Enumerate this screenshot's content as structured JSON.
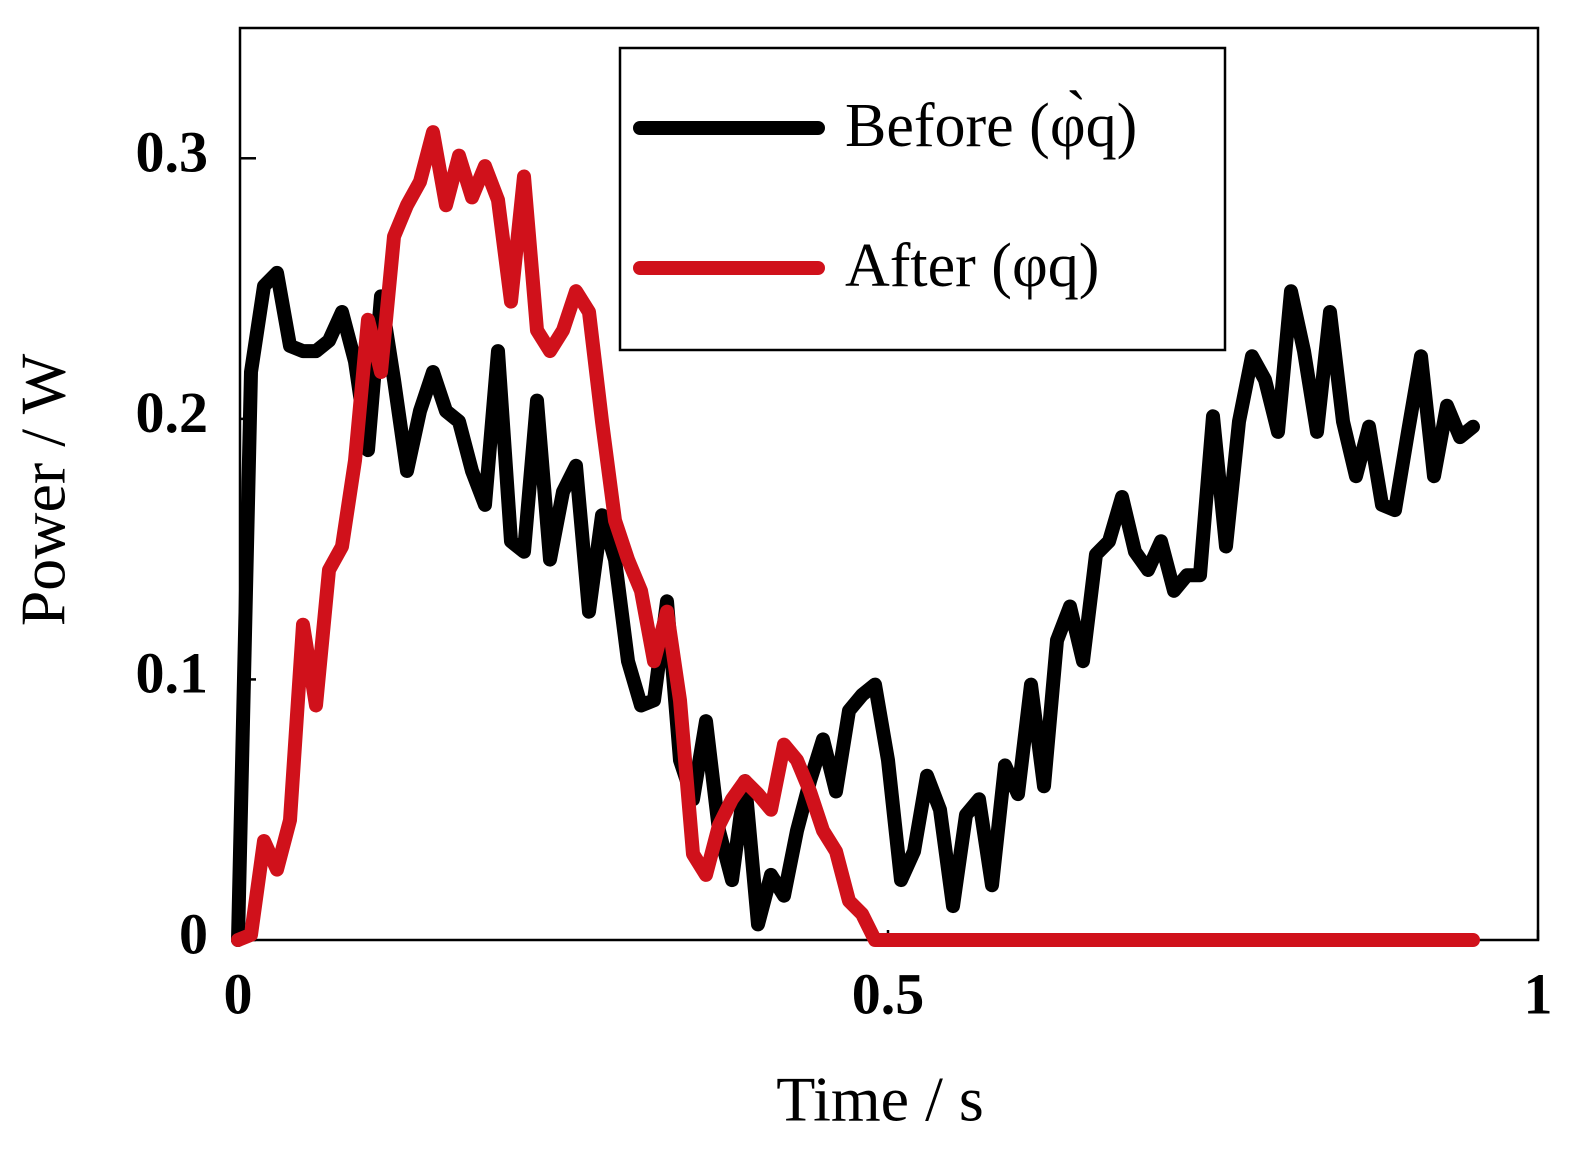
{
  "chart_data": {
    "type": "line",
    "xlabel": "Time / s",
    "ylabel": "Power / W",
    "x": [
      0,
      0.01,
      0.02,
      0.03,
      0.04,
      0.05,
      0.06,
      0.07,
      0.08,
      0.09,
      0.1,
      0.11,
      0.12,
      0.13,
      0.14,
      0.15,
      0.16,
      0.17,
      0.18,
      0.19,
      0.2,
      0.21,
      0.22,
      0.23,
      0.24,
      0.25,
      0.26,
      0.27,
      0.28,
      0.29,
      0.3,
      0.31,
      0.32,
      0.33,
      0.34,
      0.35,
      0.36,
      0.37,
      0.38,
      0.39,
      0.4,
      0.41,
      0.42,
      0.43,
      0.44,
      0.45,
      0.46,
      0.47,
      0.48,
      0.49,
      0.5,
      0.51,
      0.52,
      0.53,
      0.54,
      0.55,
      0.56,
      0.57,
      0.58,
      0.59,
      0.6,
      0.61,
      0.62,
      0.63,
      0.64,
      0.65,
      0.66,
      0.67,
      0.68,
      0.69,
      0.7,
      0.71,
      0.72,
      0.73,
      0.74,
      0.75,
      0.76,
      0.77,
      0.78,
      0.79,
      0.8,
      0.81,
      0.82,
      0.83,
      0.84,
      0.85,
      0.86,
      0.87,
      0.88,
      0.89,
      0.9,
      0.91,
      0.92,
      0.93,
      0.94,
      0.95
    ],
    "series": [
      {
        "name": "Before (φ̀q)",
        "color": "#000000",
        "values": [
          0,
          0.218,
          0.251,
          0.256,
          0.228,
          0.226,
          0.226,
          0.23,
          0.241,
          0.222,
          0.188,
          0.247,
          0.215,
          0.18,
          0.203,
          0.218,
          0.203,
          0.199,
          0.18,
          0.167,
          0.226,
          0.153,
          0.149,
          0.207,
          0.146,
          0.172,
          0.182,
          0.126,
          0.163,
          0.146,
          0.107,
          0.09,
          0.092,
          0.13,
          0.069,
          0.054,
          0.084,
          0.042,
          0.023,
          0.061,
          0.006,
          0.025,
          0.017,
          0.042,
          0.061,
          0.077,
          0.057,
          0.088,
          0.094,
          0.098,
          0.069,
          0.023,
          0.034,
          0.063,
          0.05,
          0.013,
          0.048,
          0.054,
          0.021,
          0.067,
          0.056,
          0.098,
          0.059,
          0.115,
          0.128,
          0.107,
          0.148,
          0.153,
          0.17,
          0.149,
          0.142,
          0.153,
          0.134,
          0.14,
          0.14,
          0.201,
          0.151,
          0.199,
          0.224,
          0.215,
          0.195,
          0.249,
          0.226,
          0.195,
          0.241,
          0.199,
          0.178,
          0.197,
          0.167,
          0.165,
          0.195,
          0.224,
          0.178,
          0.205,
          0.193,
          0.197
        ]
      },
      {
        "name": "After (φq)",
        "color": "#d0111b",
        "values": [
          0,
          0.002,
          0.038,
          0.027,
          0.046,
          0.121,
          0.09,
          0.142,
          0.151,
          0.184,
          0.238,
          0.218,
          0.27,
          0.282,
          0.291,
          0.31,
          0.282,
          0.301,
          0.285,
          0.297,
          0.284,
          0.245,
          0.293,
          0.234,
          0.226,
          0.234,
          0.249,
          0.241,
          0.199,
          0.161,
          0.146,
          0.134,
          0.107,
          0.126,
          0.092,
          0.033,
          0.025,
          0.044,
          0.054,
          0.061,
          0.056,
          0.05,
          0.075,
          0.069,
          0.057,
          0.042,
          0.034,
          0.015,
          0.01,
          0,
          0,
          0,
          0,
          0,
          0,
          0,
          0,
          0,
          0,
          0,
          0,
          0,
          0,
          0,
          0,
          0,
          0,
          0,
          0,
          0,
          0,
          0,
          0,
          0,
          0,
          0,
          0,
          0,
          0,
          0,
          0,
          0,
          0,
          0,
          0,
          0,
          0,
          0,
          0,
          0,
          0,
          0,
          0,
          0,
          0,
          0
        ]
      }
    ],
    "xlim": [
      0,
      1
    ],
    "ylim": [
      0,
      0.35
    ],
    "xticks": [
      0,
      0.5,
      1
    ],
    "yticks": [
      0,
      0.1,
      0.2,
      0.3
    ]
  }
}
